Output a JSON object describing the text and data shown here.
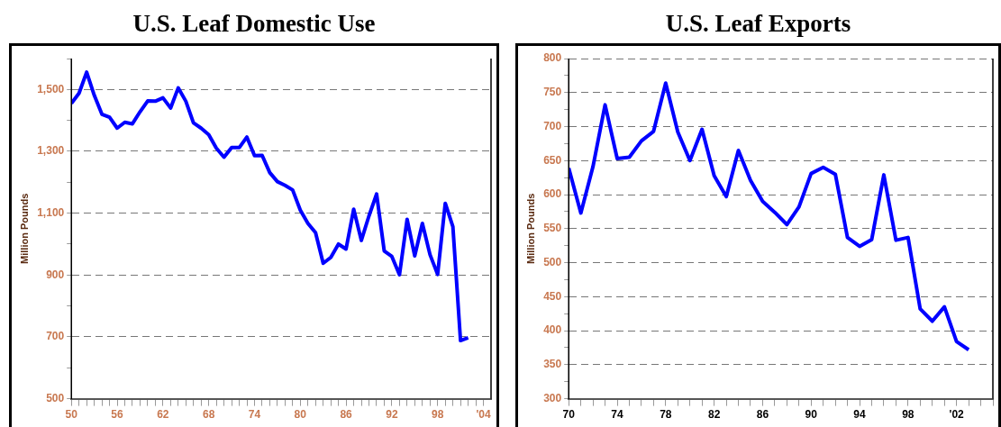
{
  "chart_data": [
    {
      "type": "line",
      "title": "U.S. Leaf Domestic Use",
      "ylabel": "Million Pounds",
      "x": [
        1950,
        1951,
        1952,
        1953,
        1954,
        1955,
        1956,
        1957,
        1958,
        1959,
        1960,
        1961,
        1962,
        1963,
        1964,
        1965,
        1966,
        1967,
        1968,
        1969,
        1970,
        1971,
        1972,
        1973,
        1974,
        1975,
        1976,
        1977,
        1978,
        1979,
        1980,
        1981,
        1982,
        1983,
        1984,
        1985,
        1986,
        1987,
        1988,
        1989,
        1990,
        1991,
        1992,
        1993,
        1994,
        1995,
        1996,
        1997,
        1998,
        1999,
        2000,
        2001,
        2002
      ],
      "series": [
        {
          "color": "#0000ff",
          "values": [
            1455,
            1488,
            1556,
            1481,
            1420,
            1410,
            1375,
            1394,
            1389,
            1428,
            1463,
            1462,
            1473,
            1440,
            1505,
            1462,
            1392,
            1375,
            1354,
            1310,
            1281,
            1312,
            1312,
            1346,
            1286,
            1287,
            1231,
            1202,
            1190,
            1175,
            1110,
            1067,
            1037,
            938,
            957,
            1000,
            984,
            1113,
            1012,
            1091,
            1162,
            978,
            960,
            901,
            1080,
            962,
            1067,
            966,
            902,
            1132,
            1056,
            688,
            697
          ]
        }
      ],
      "xlim": [
        1950,
        2005
      ],
      "xticks": [
        {
          "value": 1950,
          "label": "50"
        },
        {
          "value": 1951,
          "label": null
        },
        {
          "value": 1952,
          "label": null
        },
        {
          "value": 1953,
          "label": null
        },
        {
          "value": 1954,
          "label": null
        },
        {
          "value": 1955,
          "label": null
        },
        {
          "value": 1956,
          "label": "56"
        },
        {
          "value": 1957,
          "label": null
        },
        {
          "value": 1958,
          "label": null
        },
        {
          "value": 1959,
          "label": null
        },
        {
          "value": 1960,
          "label": null
        },
        {
          "value": 1961,
          "label": null
        },
        {
          "value": 1962,
          "label": "62"
        },
        {
          "value": 1963,
          "label": null
        },
        {
          "value": 1964,
          "label": null
        },
        {
          "value": 1965,
          "label": null
        },
        {
          "value": 1966,
          "label": null
        },
        {
          "value": 1967,
          "label": null
        },
        {
          "value": 1968,
          "label": "68"
        },
        {
          "value": 1969,
          "label": null
        },
        {
          "value": 1970,
          "label": null
        },
        {
          "value": 1971,
          "label": null
        },
        {
          "value": 1972,
          "label": null
        },
        {
          "value": 1973,
          "label": null
        },
        {
          "value": 1974,
          "label": "74"
        },
        {
          "value": 1975,
          "label": null
        },
        {
          "value": 1976,
          "label": null
        },
        {
          "value": 1977,
          "label": null
        },
        {
          "value": 1978,
          "label": null
        },
        {
          "value": 1979,
          "label": null
        },
        {
          "value": 1980,
          "label": "80"
        },
        {
          "value": 1981,
          "label": null
        },
        {
          "value": 1982,
          "label": null
        },
        {
          "value": 1983,
          "label": null
        },
        {
          "value": 1984,
          "label": null
        },
        {
          "value": 1985,
          "label": null
        },
        {
          "value": 1986,
          "label": "86"
        },
        {
          "value": 1987,
          "label": null
        },
        {
          "value": 1988,
          "label": null
        },
        {
          "value": 1989,
          "label": null
        },
        {
          "value": 1990,
          "label": null
        },
        {
          "value": 1991,
          "label": null
        },
        {
          "value": 1992,
          "label": "92"
        },
        {
          "value": 1993,
          "label": null
        },
        {
          "value": 1994,
          "label": null
        },
        {
          "value": 1995,
          "label": null
        },
        {
          "value": 1996,
          "label": null
        },
        {
          "value": 1997,
          "label": null
        },
        {
          "value": 1998,
          "label": "98"
        },
        {
          "value": 1999,
          "label": null
        },
        {
          "value": 2000,
          "label": null
        },
        {
          "value": 2001,
          "label": null
        },
        {
          "value": 2002,
          "label": null
        },
        {
          "value": 2003,
          "label": null
        },
        {
          "value": 2004,
          "label": "'04"
        }
      ],
      "ylim": [
        500,
        1600
      ],
      "yticks": [
        {
          "value": 500,
          "label": "500"
        },
        {
          "value": 600,
          "label": null
        },
        {
          "value": 700,
          "label": "700"
        },
        {
          "value": 800,
          "label": null
        },
        {
          "value": 900,
          "label": "900"
        },
        {
          "value": 1000,
          "label": null
        },
        {
          "value": 1100,
          "label": "1,100"
        },
        {
          "value": 1200,
          "label": null
        },
        {
          "value": 1300,
          "label": "1,300"
        },
        {
          "value": 1400,
          "label": null
        },
        {
          "value": 1500,
          "label": "1,500"
        },
        {
          "value": 1600,
          "label": null
        }
      ],
      "grid": "y",
      "line_style": "solid",
      "legend": false
    },
    {
      "type": "line",
      "title": "U.S. Leaf Exports",
      "ylabel": "Million Pounds",
      "x": [
        1970,
        1971,
        1972,
        1973,
        1974,
        1975,
        1976,
        1977,
        1978,
        1979,
        1980,
        1981,
        1982,
        1983,
        1984,
        1985,
        1986,
        1987,
        1988,
        1989,
        1990,
        1991,
        1992,
        1993,
        1994,
        1995,
        1996,
        1997,
        1998,
        1999,
        2000,
        2001,
        2002,
        2003
      ],
      "series": [
        {
          "color": "#0000ff",
          "values": [
            639,
            573,
            641,
            732,
            653,
            655,
            679,
            693,
            764,
            692,
            650,
            696,
            628,
            597,
            665,
            621,
            590,
            574,
            556,
            582,
            631,
            640,
            630,
            537,
            524,
            534,
            629,
            533,
            537,
            432,
            414,
            435,
            384,
            372
          ]
        }
      ],
      "xlim": [
        1970,
        2005
      ],
      "xticks": [
        {
          "value": 1970,
          "label": "70"
        },
        {
          "value": 1971,
          "label": null
        },
        {
          "value": 1972,
          "label": null
        },
        {
          "value": 1973,
          "label": null
        },
        {
          "value": 1974,
          "label": "74"
        },
        {
          "value": 1975,
          "label": null
        },
        {
          "value": 1976,
          "label": null
        },
        {
          "value": 1977,
          "label": null
        },
        {
          "value": 1978,
          "label": "78"
        },
        {
          "value": 1979,
          "label": null
        },
        {
          "value": 1980,
          "label": null
        },
        {
          "value": 1981,
          "label": null
        },
        {
          "value": 1982,
          "label": "82"
        },
        {
          "value": 1983,
          "label": null
        },
        {
          "value": 1984,
          "label": null
        },
        {
          "value": 1985,
          "label": null
        },
        {
          "value": 1986,
          "label": "86"
        },
        {
          "value": 1987,
          "label": null
        },
        {
          "value": 1988,
          "label": null
        },
        {
          "value": 1989,
          "label": null
        },
        {
          "value": 1990,
          "label": "90"
        },
        {
          "value": 1991,
          "label": null
        },
        {
          "value": 1992,
          "label": null
        },
        {
          "value": 1993,
          "label": null
        },
        {
          "value": 1994,
          "label": "94"
        },
        {
          "value": 1995,
          "label": null
        },
        {
          "value": 1996,
          "label": null
        },
        {
          "value": 1997,
          "label": null
        },
        {
          "value": 1998,
          "label": "98"
        },
        {
          "value": 1999,
          "label": null
        },
        {
          "value": 2000,
          "label": null
        },
        {
          "value": 2001,
          "label": null
        },
        {
          "value": 2002,
          "label": "'02"
        },
        {
          "value": 2003,
          "label": null
        },
        {
          "value": 2004,
          "label": null
        },
        {
          "value": 2005,
          "label": null
        }
      ],
      "ylim": [
        300,
        800
      ],
      "yticks": [
        300,
        {
          "value": 325,
          "label": null
        },
        350,
        {
          "value": 375,
          "label": null
        },
        400,
        {
          "value": 425,
          "label": null
        },
        450,
        {
          "value": 475,
          "label": null
        },
        500,
        {
          "value": 525,
          "label": null
        },
        550,
        {
          "value": 575,
          "label": null
        },
        600,
        {
          "value": 625,
          "label": null
        },
        650,
        {
          "value": 675,
          "label": null
        },
        700,
        {
          "value": 725,
          "label": null
        },
        750,
        {
          "value": 775,
          "label": null
        },
        800
      ],
      "grid": "y",
      "line_style": "solid",
      "legend": false
    }
  ]
}
